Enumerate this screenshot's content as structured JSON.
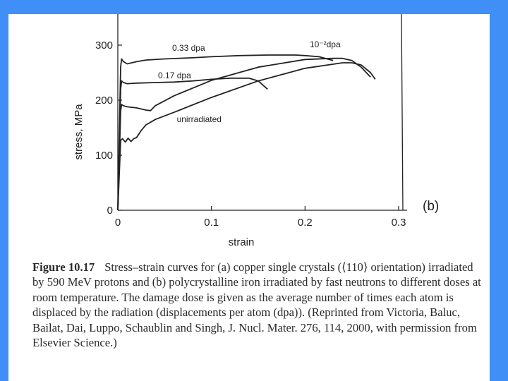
{
  "chart_data": {
    "type": "line",
    "xlabel": "strain",
    "ylabel": "stress, MPa",
    "xlim": [
      0,
      0.3
    ],
    "ylim": [
      0,
      350
    ],
    "x_ticks": [
      "0",
      "0.1",
      "0.2",
      "0.3"
    ],
    "y_ticks": [
      "0",
      "100",
      "200",
      "300"
    ],
    "x_tick_values": [
      0,
      0.1,
      0.2,
      0.3
    ],
    "y_tick_values": [
      0,
      100,
      200,
      300
    ],
    "panel_label": "(b)",
    "grid": false,
    "series": [
      {
        "name": "0.33 dpa",
        "x": [
          0,
          0.003,
          0.004,
          0.006,
          0.01,
          0.02,
          0.03,
          0.05,
          0.08,
          0.1,
          0.13,
          0.16,
          0.19,
          0.2,
          0.215,
          0.23
        ],
        "y": [
          0,
          260,
          275,
          270,
          266,
          270,
          273,
          275,
          277,
          279,
          281,
          282,
          282,
          281,
          279,
          272
        ]
      },
      {
        "name": "0.17 dpa",
        "x": [
          0,
          0.003,
          0.004,
          0.006,
          0.01,
          0.02,
          0.04,
          0.06,
          0.08,
          0.1,
          0.12,
          0.14,
          0.15,
          0.16
        ],
        "y": [
          0,
          220,
          235,
          232,
          230,
          231,
          232,
          233,
          235,
          238,
          240,
          240,
          235,
          220
        ]
      },
      {
        "name": "10⁻²dpa",
        "x": [
          0,
          0.003,
          0.004,
          0.006,
          0.01,
          0.02,
          0.03,
          0.035,
          0.04,
          0.06,
          0.1,
          0.15,
          0.2,
          0.23,
          0.24,
          0.25,
          0.26,
          0.27
        ],
        "y": [
          0,
          180,
          192,
          190,
          188,
          186,
          182,
          181,
          190,
          208,
          236,
          260,
          274,
          276,
          276,
          272,
          260,
          242
        ]
      },
      {
        "name": "unirradiated",
        "x": [
          0,
          0.003,
          0.005,
          0.008,
          0.011,
          0.014,
          0.017,
          0.02,
          0.025,
          0.03,
          0.04,
          0.06,
          0.1,
          0.15,
          0.2,
          0.24,
          0.25,
          0.26,
          0.27,
          0.275
        ],
        "y": [
          0,
          127,
          130,
          124,
          131,
          125,
          130,
          132,
          145,
          155,
          165,
          178,
          205,
          235,
          258,
          268,
          268,
          264,
          250,
          238
        ]
      }
    ]
  },
  "caption": {
    "figure_number": "Figure 10.17",
    "text": "Stress–strain curves for (a) copper single crystals (⟨110⟩ orientation) irradiated by 590 MeV protons and (b) polycrystalline iron irradiated by fast neutrons to different doses at room temperature. The damage dose is given as the average number of times each atom is displaced by the radiation (displacements per atom (dpa)). (Reprinted from Victoria, Baluc, Bailat, Dai, Luppo, Schaublin and Singh, J. Nucl. Mater. 276, 114, 2000, with permission from Elsevier Science.)"
  }
}
